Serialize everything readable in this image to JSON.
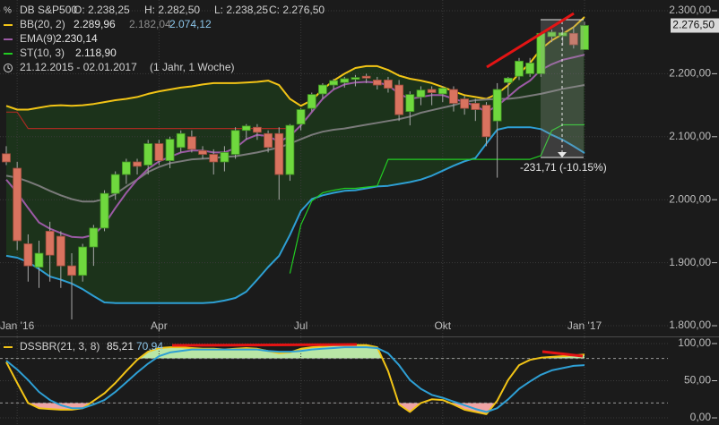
{
  "chart_data": [
    {
      "type": "candlestick",
      "title": "DB S&P500",
      "ohlc_labels": [
        "O: 2.238,25",
        "H: 2.282,50",
        "L: 2.238,25",
        "C: 2.276,50"
      ],
      "period": "21.12.2015 - 02.01.2017",
      "span": "(1 Jahr, 1 Woche)",
      "categories": [
        null,
        "Jan '16",
        null,
        null,
        null,
        null,
        null,
        null,
        null,
        null,
        null,
        null,
        null,
        null,
        "Apr",
        null,
        null,
        null,
        null,
        null,
        null,
        null,
        null,
        null,
        null,
        null,
        null,
        "Jul",
        null,
        null,
        null,
        null,
        null,
        null,
        null,
        null,
        null,
        null,
        null,
        null,
        "Okt",
        null,
        null,
        null,
        null,
        null,
        null,
        null,
        null,
        null,
        null,
        null,
        null,
        "Jan '17"
      ],
      "open": [
        2073,
        2050,
        1930,
        1893,
        1950,
        1942,
        1895,
        1880,
        1925,
        1955,
        2010,
        2040,
        2060,
        2055,
        2089,
        2062,
        2083,
        2100,
        2078,
        2072,
        2060,
        2072,
        2110,
        2115,
        2105,
        2105,
        2040,
        2120,
        2145,
        2168,
        2182,
        2186,
        2191,
        2196,
        2190,
        2190,
        2182,
        2140,
        2163,
        2175,
        2168,
        2175,
        2160,
        2153,
        2150,
        2125,
        2186,
        2196,
        2200,
        2200,
        2259,
        2260,
        2264,
        2238.25
      ],
      "high": [
        2085,
        2060,
        1945,
        1935,
        1965,
        1950,
        1915,
        1930,
        1960,
        2015,
        2045,
        2065,
        2065,
        2095,
        2095,
        2100,
        2110,
        2110,
        2085,
        2080,
        2085,
        2115,
        2120,
        2120,
        2110,
        2115,
        2120,
        2145,
        2170,
        2185,
        2192,
        2195,
        2198,
        2200,
        2195,
        2195,
        2190,
        2172,
        2180,
        2180,
        2180,
        2180,
        2165,
        2160,
        2155,
        2185,
        2195,
        2225,
        2225,
        2265,
        2270,
        2272,
        2275,
        2282.5
      ],
      "low": [
        2055,
        1920,
        1870,
        1860,
        1870,
        1860,
        1810,
        1870,
        1895,
        1950,
        2000,
        2025,
        2040,
        2040,
        2055,
        2050,
        2075,
        2075,
        2065,
        2040,
        2045,
        2065,
        2095,
        2095,
        2075,
        2000,
        2030,
        2110,
        2140,
        2160,
        2175,
        2178,
        2180,
        2185,
        2175,
        2170,
        2125,
        2118,
        2150,
        2150,
        2155,
        2140,
        2135,
        2125,
        2085,
        2035,
        2165,
        2190,
        2195,
        2195,
        2250,
        2245,
        2240,
        2238.25
      ],
      "close": [
        2060,
        1935,
        1895,
        1915,
        1912,
        1895,
        1880,
        1925,
        1955,
        2010,
        2040,
        2060,
        2053,
        2089,
        2062,
        2096,
        2105,
        2080,
        2072,
        2060,
        2075,
        2110,
        2117,
        2107,
        2083,
        2040,
        2118,
        2143,
        2167,
        2182,
        2189,
        2192,
        2194,
        2193,
        2182,
        2177,
        2135,
        2167,
        2174,
        2170,
        2177,
        2153,
        2145,
        2143,
        2100,
        2175,
        2193,
        2220,
        2217,
        2264,
        2266,
        2265,
        2246,
        2276.5
      ],
      "up_color": "#6fd83e",
      "down_color": "#d9735f",
      "last_label": "2.276,50",
      "bands": {
        "name": "BB(20, 2)",
        "fill": "#1c331b",
        "series": [
          {
            "color": "#f2c416",
            "legend_value": "2.289,96",
            "values": [
              2149,
              2143,
              2143,
              2146,
              2149,
              2150,
              2149,
              2150,
              2152,
              2155,
              2158,
              2160,
              2163,
              2168,
              2172,
              2175,
              2178,
              2180,
              2183,
              2185,
              2185,
              2185,
              2186,
              2187,
              2189,
              2182,
              2160,
              2149,
              2158,
              2175,
              2189,
              2200,
              2209,
              2212,
              2212,
              2206,
              2197,
              2192,
              2189,
              2185,
              2179,
              2172,
              2166,
              2163,
              2160,
              2168,
              2182,
              2200,
              2217,
              2239,
              2253,
              2263,
              2274,
              2289.96
            ]
          },
          {
            "color": "#7a7a7a",
            "legend_value": "2.182,04",
            "values": [
              2038,
              2035,
              2029,
              2022,
              2014,
              2007,
              2001,
              1997,
              1997,
              2001,
              2009,
              2021,
              2032,
              2044,
              2052,
              2058,
              2061,
              2064,
              2065,
              2066,
              2068,
              2069,
              2072,
              2075,
              2079,
              2083,
              2089,
              2096,
              2103,
              2108,
              2111,
              2113,
              2116,
              2119,
              2122,
              2125,
              2128,
              2132,
              2138,
              2142,
              2146,
              2150,
              2155,
              2158,
              2159,
              2160,
              2160,
              2162,
              2165,
              2168,
              2172,
              2176,
              2179,
              2182.04
            ]
          },
          {
            "color": "#2e9fd4",
            "legend_value": "2.074,12",
            "values": [
              1911,
              1908,
              1901,
              1890,
              1878,
              1873,
              1867,
              1858,
              1847,
              1837,
              1836,
              1836,
              1836,
              1836,
              1836,
              1836,
              1836,
              1836,
              1836,
              1837,
              1840,
              1844,
              1854,
              1873,
              1893,
              1911,
              1944,
              1982,
              2001,
              2007,
              2011,
              2014,
              2015,
              2018,
              2021,
              2022,
              2025,
              2028,
              2032,
              2038,
              2046,
              2054,
              2061,
              2066,
              2089,
              2111,
              2115,
              2115,
              2115,
              2112,
              2103,
              2095,
              2085,
              2074.12
            ]
          }
        ]
      },
      "series": [
        {
          "name": "EMA(9)",
          "color": "#9b5aa5",
          "legend_value": "2.230,14",
          "values": [
            2032,
            2011,
            1987,
            1964,
            1954,
            1947,
            1941,
            1940,
            1944,
            1961,
            1987,
            2011,
            2032,
            2049,
            2061,
            2068,
            2075,
            2078,
            2078,
            2075,
            2075,
            2082,
            2096,
            2103,
            2101,
            2092,
            2101,
            2118,
            2139,
            2160,
            2175,
            2183,
            2186,
            2187,
            2186,
            2182,
            2168,
            2160,
            2163,
            2166,
            2166,
            2160,
            2155,
            2149,
            2139,
            2149,
            2163,
            2178,
            2189,
            2206,
            2215,
            2222,
            2226,
            2230.14
          ]
        },
        {
          "name": "ST(10, 3)",
          "color": "#22cc22",
          "legend_value": "2.118,90",
          "values": [
            null,
            null,
            null,
            null,
            null,
            null,
            null,
            null,
            null,
            null,
            null,
            null,
            null,
            null,
            null,
            null,
            null,
            null,
            null,
            null,
            null,
            null,
            null,
            null,
            null,
            null,
            1883,
            1960,
            1998,
            2011,
            2015,
            2018,
            2018,
            2020,
            2022,
            2064,
            2064,
            2064,
            2064,
            2064,
            2064,
            2064,
            2064,
            2064,
            2064,
            2064,
            2064,
            2064,
            2064,
            2070,
            2110,
            2118.9,
            2118.9,
            2118.9
          ],
          "down_color": "#a82a22",
          "down_values": [
            2139,
            2139,
            2113,
            2113,
            2113,
            2113,
            2113,
            2113,
            2113,
            2113,
            2113,
            2113,
            2113,
            2113,
            2113,
            2113,
            2113,
            2113,
            2113,
            2113,
            2113,
            2113,
            2113,
            2113,
            2113,
            2113,
            2113,
            null,
            null,
            null,
            null,
            null,
            null,
            null,
            null,
            null,
            null,
            null,
            null,
            null,
            null,
            null,
            null,
            null,
            null,
            null,
            null,
            null,
            null,
            null,
            null,
            null,
            null,
            null
          ]
        }
      ],
      "annotation": "-231,71 (-10.15%)",
      "ylim": [
        1783,
        2317
      ],
      "yticks": [
        {
          "value": 1800,
          "label": "1.800,00"
        },
        {
          "value": 1900,
          "label": "1.900,00"
        },
        {
          "value": 2000,
          "label": "2.000,00"
        },
        {
          "value": 2100,
          "label": "2.100,00"
        },
        {
          "value": 2200,
          "label": "2.200,00"
        },
        {
          "value": 2300,
          "label": "2.300,00"
        }
      ],
      "grid": true
    },
    {
      "type": "line",
      "name": "DSSBR(21, 3, 8)",
      "series": [
        {
          "color": "#f2c416",
          "legend_value": "85,21",
          "values": [
            75,
            47,
            20,
            13,
            12,
            11,
            11,
            13,
            23,
            33,
            47,
            63,
            78,
            89,
            94,
            95,
            95,
            94,
            93,
            93,
            92,
            93,
            94,
            93,
            90,
            87,
            88,
            93,
            95,
            96,
            98,
            98,
            98,
            98,
            95,
            63,
            18,
            8,
            20,
            25,
            24,
            18,
            11,
            8,
            5,
            23,
            51,
            71,
            78,
            81,
            82,
            83,
            84,
            85.21
          ]
        },
        {
          "color": "#2e9fd4",
          "legend_value": "70,94",
          "values": [
            77,
            65,
            51,
            35,
            24,
            17,
            13,
            13,
            18,
            24,
            35,
            48,
            61,
            73,
            83,
            88,
            90,
            92,
            92,
            92,
            92,
            92,
            92,
            92,
            90,
            89,
            89,
            90,
            92,
            93,
            94,
            95,
            95,
            95,
            94,
            87,
            71,
            51,
            39,
            31,
            27,
            22,
            17,
            12,
            8,
            13,
            25,
            39,
            49,
            58,
            64,
            67,
            70,
            70.94
          ]
        }
      ],
      "levels": [
        20,
        80
      ],
      "over_color": "#b9e6a6",
      "under_color": "#f0a4a4",
      "ylim": [
        -9.6,
        108.4
      ],
      "yticks": [
        {
          "value": 0,
          "label": "0,00"
        },
        {
          "value": 50,
          "label": "50,00"
        },
        {
          "value": 100,
          "label": "100,00"
        }
      ],
      "grid": true
    }
  ]
}
